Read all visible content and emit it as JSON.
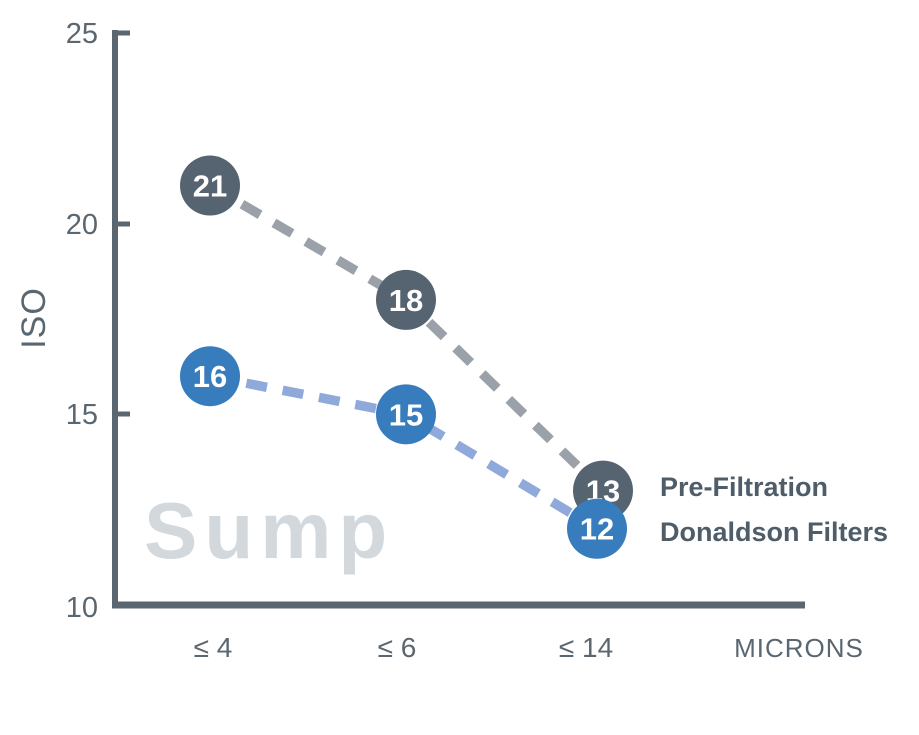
{
  "chart_data": {
    "type": "line",
    "title": "",
    "watermark": "Sump",
    "xlabel": "MICRONS",
    "ylabel": "ISO",
    "ylim": [
      10,
      25
    ],
    "yticks": [
      "25",
      "20",
      "15",
      "10"
    ],
    "categories": [
      "≤ 4",
      "≤ 6",
      "≤ 14"
    ],
    "grid": false,
    "legend_position": "right of last data points",
    "line_style": "dashed",
    "marker_style": "numbered circle",
    "series": [
      {
        "name": "Pre-Filtration",
        "values": [
          21,
          18,
          13
        ],
        "marker_color": "#566370",
        "dash_color": "#9aa1a9",
        "label_color": "#ffffff"
      },
      {
        "name": "Donaldson Filters",
        "values": [
          16,
          15,
          12
        ],
        "marker_color": "#377cbd",
        "dash_color": "#8fa9db",
        "label_color": "#ffffff"
      }
    ]
  },
  "colors": {
    "background": "#ffffff",
    "axis": "#5b6770",
    "tick_text": "#5b6770",
    "legend_text": "#4f5d69",
    "watermark": "#d3d8dc"
  }
}
